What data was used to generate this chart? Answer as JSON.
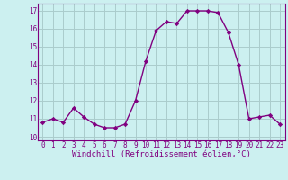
{
  "x": [
    0,
    1,
    2,
    3,
    4,
    5,
    6,
    7,
    8,
    9,
    10,
    11,
    12,
    13,
    14,
    15,
    16,
    17,
    18,
    19,
    20,
    21,
    22,
    23
  ],
  "y": [
    10.8,
    11.0,
    10.8,
    11.6,
    11.1,
    10.7,
    10.5,
    10.5,
    10.7,
    12.0,
    14.2,
    15.9,
    16.4,
    16.3,
    17.0,
    17.0,
    17.0,
    16.9,
    15.8,
    14.0,
    11.0,
    11.1,
    11.2,
    10.7
  ],
  "line_color": "#800080",
  "marker": "D",
  "marker_size": 2.2,
  "bg_color": "#ccf0f0",
  "grid_color": "#aacccc",
  "xlabel": "Windchill (Refroidissement éolien,°C)",
  "xlabel_color": "#800080",
  "tick_color": "#800080",
  "ylim": [
    9.8,
    17.4
  ],
  "xlim": [
    -0.5,
    23.5
  ],
  "yticks": [
    10,
    11,
    12,
    13,
    14,
    15,
    16,
    17
  ],
  "xticks": [
    0,
    1,
    2,
    3,
    4,
    5,
    6,
    7,
    8,
    9,
    10,
    11,
    12,
    13,
    14,
    15,
    16,
    17,
    18,
    19,
    20,
    21,
    22,
    23
  ],
  "xtick_labels": [
    "0",
    "1",
    "2",
    "3",
    "4",
    "5",
    "6",
    "7",
    "8",
    "9",
    "10",
    "11",
    "12",
    "13",
    "14",
    "15",
    "16",
    "17",
    "18",
    "19",
    "20",
    "21",
    "22",
    "23"
  ],
  "ytick_labels": [
    "10",
    "11",
    "12",
    "13",
    "14",
    "15",
    "16",
    "17"
  ],
  "spine_color": "#800080",
  "linewidth": 1.0,
  "tick_fontsize": 5.5,
  "xlabel_fontsize": 6.5
}
